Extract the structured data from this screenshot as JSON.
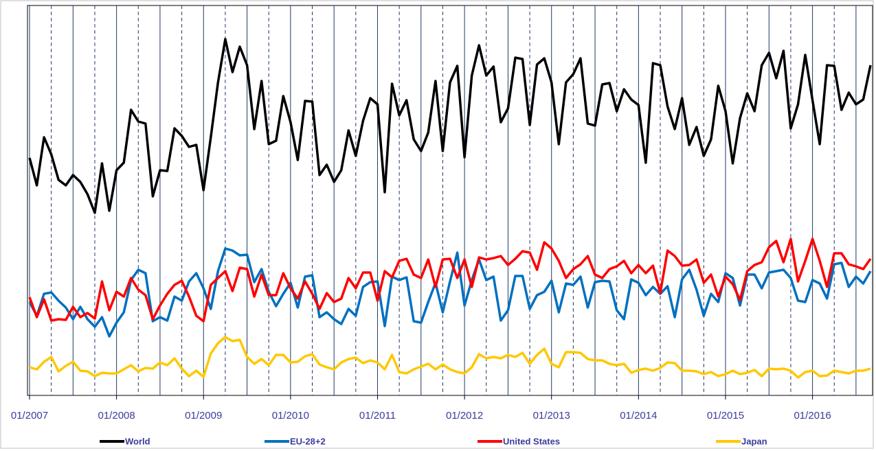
{
  "chart_data": {
    "type": "line",
    "categories": [
      "01/2007",
      null,
      null,
      null,
      null,
      null,
      null,
      null,
      null,
      null,
      null,
      null,
      "01/2008",
      null,
      null,
      null,
      null,
      null,
      null,
      null,
      null,
      null,
      null,
      null,
      "01/2009",
      null,
      null,
      null,
      null,
      null,
      null,
      null,
      null,
      null,
      null,
      null,
      "01/2010",
      null,
      null,
      null,
      null,
      null,
      null,
      null,
      null,
      null,
      null,
      null,
      "01/2011",
      null,
      null,
      null,
      null,
      null,
      null,
      null,
      null,
      null,
      null,
      null,
      "01/2012",
      null,
      null,
      null,
      null,
      null,
      null,
      null,
      null,
      null,
      null,
      null,
      "01/2013",
      null,
      null,
      null,
      null,
      null,
      null,
      null,
      null,
      null,
      null,
      null,
      "01/2014",
      null,
      null,
      null,
      null,
      null,
      null,
      null,
      null,
      null,
      null,
      null,
      "01/2015",
      null,
      null,
      null,
      null,
      null,
      null,
      null,
      null,
      null,
      null,
      null,
      "01/2016",
      null,
      null,
      null,
      null,
      null,
      null,
      null,
      null
    ],
    "ylim": [
      0,
      563
    ],
    "grid": true,
    "series": [
      {
        "name": "World",
        "color": "#000000",
        "values": [
          345,
          305,
          375,
          350,
          313,
          305,
          320,
          310,
          292,
          265,
          337,
          268,
          327,
          338,
          415,
          398,
          395,
          289,
          327,
          326,
          388,
          377,
          361,
          364,
          298,
          375,
          455,
          518,
          470,
          507,
          480,
          387,
          457,
          365,
          370,
          435,
          397,
          342,
          428,
          427,
          320,
          335,
          310,
          327,
          385,
          348,
          399,
          432,
          423,
          295,
          453,
          407,
          429,
          372,
          355,
          382,
          457,
          355,
          455,
          479,
          346,
          465,
          509,
          465,
          478,
          397,
          417,
          491,
          489,
          393,
          481,
          490,
          455,
          365,
          455,
          467,
          490,
          395,
          392,
          452,
          454,
          413,
          445,
          430,
          422,
          338,
          483,
          480,
          420,
          387,
          432,
          364,
          390,
          348,
          372,
          450,
          413,
          337,
          403,
          439,
          413,
          480,
          498,
          461,
          501,
          388,
          423,
          495,
          429,
          365,
          480,
          479,
          415,
          440,
          423,
          430,
          480
        ]
      },
      {
        "name": "EU-28+2",
        "color": "#0070c0",
        "values": [
          135,
          115,
          147,
          149,
          137,
          127,
          110,
          128,
          110,
          99,
          113,
          85,
          105,
          120,
          167,
          182,
          177,
          107,
          113,
          108,
          143,
          137,
          165,
          177,
          155,
          125,
          180,
          213,
          210,
          203,
          204,
          164,
          183,
          150,
          129,
          147,
          163,
          127,
          172,
          174,
          113,
          120,
          110,
          103,
          125,
          115,
          157,
          164,
          165,
          100,
          172,
          167,
          171,
          107,
          105,
          135,
          163,
          120,
          165,
          207,
          130,
          167,
          197,
          167,
          172,
          108,
          123,
          173,
          173,
          125,
          145,
          150,
          166,
          120,
          162,
          160,
          172,
          127,
          164,
          166,
          165,
          123,
          110,
          168,
          163,
          145,
          157,
          147,
          158,
          113,
          168,
          182,
          153,
          115,
          147,
          135,
          177,
          170,
          130,
          175,
          175,
          155,
          178,
          180,
          182,
          170,
          137,
          135,
          167,
          162,
          140,
          190,
          192,
          157,
          172,
          162,
          180
        ]
      },
      {
        "name": "United States",
        "color": "#ff0000",
        "values": [
          142,
          113,
          139,
          108,
          110,
          109,
          128,
          113,
          119,
          111,
          165,
          123,
          150,
          143,
          170,
          153,
          145,
          110,
          130,
          147,
          160,
          166,
          143,
          115,
          107,
          160,
          170,
          180,
          151,
          185,
          183,
          143,
          175,
          145,
          145,
          177,
          155,
          140,
          165,
          147,
          125,
          148,
          135,
          140,
          170,
          155,
          178,
          178,
          137,
          180,
          171,
          195,
          198,
          175,
          170,
          197,
          157,
          197,
          198,
          170,
          197,
          157,
          200,
          197,
          199,
          202,
          189,
          198,
          209,
          207,
          182,
          222,
          213,
          195,
          170,
          183,
          190,
          202,
          175,
          170,
          183,
          187,
          195,
          177,
          189,
          177,
          188,
          148,
          210,
          202,
          188,
          189,
          197,
          163,
          175,
          143,
          172,
          161,
          138,
          180,
          189,
          193,
          215,
          224,
          193,
          227,
          165,
          195,
          227,
          195,
          157,
          206,
          206,
          190,
          187,
          183,
          198
        ]
      },
      {
        "name": "Japan",
        "color": "#ffc800",
        "values": [
          40,
          37,
          48,
          55,
          34,
          42,
          48,
          35,
          34,
          27,
          32,
          31,
          31,
          37,
          43,
          34,
          39,
          38,
          47,
          43,
          53,
          38,
          27,
          35,
          26,
          60,
          75,
          84,
          78,
          80,
          55,
          45,
          52,
          43,
          58,
          58,
          47,
          48,
          56,
          59,
          44,
          40,
          37,
          47,
          52,
          54,
          46,
          50,
          47,
          37,
          58,
          33,
          31,
          37,
          41,
          45,
          37,
          44,
          37,
          33,
          31,
          40,
          59,
          53,
          55,
          53,
          58,
          55,
          61,
          45,
          58,
          67,
          45,
          40,
          62,
          62,
          61,
          52,
          50,
          50,
          45,
          43,
          45,
          32,
          36,
          38,
          35,
          39,
          47,
          46,
          35,
          35,
          34,
          30,
          33,
          27,
          30,
          35,
          30,
          32,
          36,
          27,
          38,
          37,
          38,
          35,
          25,
          33,
          35,
          27,
          28,
          35,
          33,
          31,
          35,
          35,
          38
        ]
      }
    ]
  }
}
